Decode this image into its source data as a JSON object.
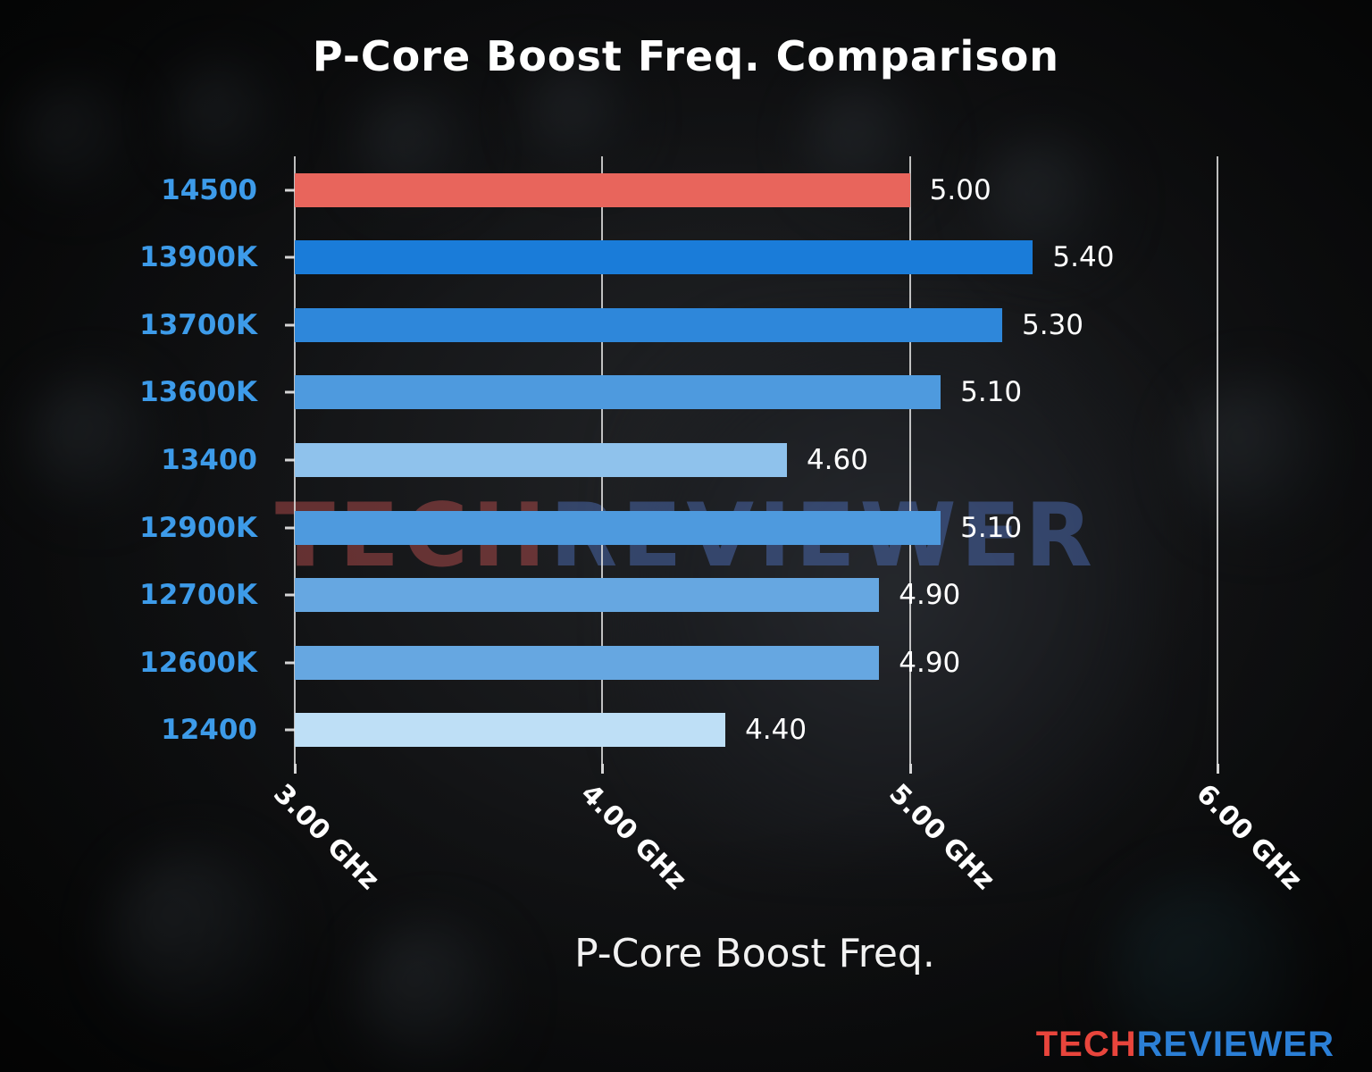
{
  "chart_data": {
    "type": "bar",
    "orientation": "horizontal",
    "title": "P-Core Boost Freq. Comparison",
    "xlabel": "P-Core Boost Freq.",
    "categories": [
      "14500",
      "13900K",
      "13700K",
      "13600K",
      "13400",
      "12900K",
      "12700K",
      "12600K",
      "12400"
    ],
    "values": [
      5.0,
      5.4,
      5.3,
      5.1,
      4.6,
      5.1,
      4.9,
      4.9,
      4.4
    ],
    "value_labels": [
      "5.00",
      "5.40",
      "5.30",
      "5.10",
      "4.60",
      "5.10",
      "4.90",
      "4.90",
      "4.40"
    ],
    "bar_colors": [
      "#e8655c",
      "#1a7cd9",
      "#2e87da",
      "#4e9ade",
      "#8fc2ec",
      "#4e9ade",
      "#66a7e1",
      "#66a7e1",
      "#bedff6"
    ],
    "xlim": [
      3.0,
      6.27
    ],
    "xticks": [
      3.0,
      4.0,
      5.0,
      6.0
    ],
    "xtick_labels": [
      "3.00 GHz",
      "4.00 GHz",
      "5.00 GHz",
      "6.00 GHz"
    ],
    "grid": true,
    "legend": false,
    "highlight_category": "14500",
    "category_label_color": "#3d9be9",
    "value_label_color": "#ffffff"
  },
  "watermark": {
    "part1": "TECH",
    "part2": "REVIEWER"
  },
  "branding": {
    "part1": "TECH",
    "part2": "REVIEWER"
  }
}
